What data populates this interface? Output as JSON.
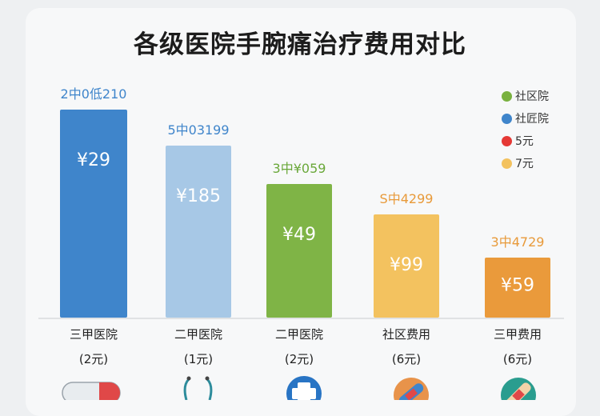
{
  "title": "各级医院手腕痛治疗费用对比",
  "chart_data": {
    "type": "bar",
    "title": "各级医院手腕痛治疗费用对比",
    "categories": [
      "三甲医院",
      "二甲医院",
      "二甲医院",
      "社区费用",
      "三甲费用"
    ],
    "sublabels": [
      "(2元)",
      "(1元)",
      "(2元)",
      "(6元)",
      "(6元)"
    ],
    "top_labels": [
      "2中0低210",
      "5中03199",
      "3中¥059",
      "S中4299",
      "3中4729"
    ],
    "bar_labels": [
      "¥29",
      "¥185",
      "¥49",
      "¥99",
      "¥59"
    ],
    "values": [
      260,
      215,
      167,
      129,
      75
    ],
    "colors": [
      "#3f85cb",
      "#a7c8e6",
      "#7fb446",
      "#f3c25f",
      "#ea9a3b"
    ],
    "top_label_colors": [
      "#3f85cb",
      "#3f85cb",
      "#6aa83a",
      "#e89a3a",
      "#e89a3a"
    ],
    "bar_label_colors": [
      "#ffffff",
      "#ffffff",
      "#ffffff",
      "#ffffff",
      "#ffffff"
    ],
    "ylim": [
      0,
      300
    ],
    "xlabel": "",
    "ylabel": "",
    "grid": false,
    "legend_position": "right",
    "legend": [
      {
        "label": "社区院",
        "color": "#79b13f"
      },
      {
        "label": "社匠院",
        "color": "#3f85cb"
      },
      {
        "label": "5元",
        "color": "#e53935"
      },
      {
        "label": "7元",
        "color": "#f3c25f"
      }
    ],
    "icons": [
      "pill-capsule-icon",
      "stethoscope-icon",
      "medical-cross-icon",
      "bandage-icon",
      "plaster-icon"
    ]
  }
}
